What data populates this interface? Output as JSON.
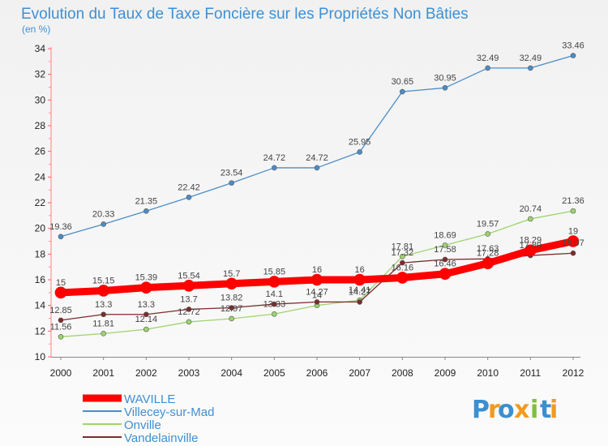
{
  "chart_data": {
    "type": "line",
    "title": "Evolution du Taux de Taxe Foncière sur les Propriétés Non Bâties",
    "subtitle": "(en %)",
    "xlabel": "",
    "ylabel": "",
    "x": [
      "2000",
      "2001",
      "2002",
      "2003",
      "2004",
      "2005",
      "2006",
      "2007",
      "2008",
      "2009",
      "2010",
      "2011",
      "2012"
    ],
    "ylim": [
      10,
      34
    ],
    "yticks": [
      10,
      12,
      14,
      16,
      18,
      20,
      22,
      24,
      26,
      28,
      30,
      32,
      34
    ],
    "grid": false,
    "legend": "bottom-left",
    "series": [
      {
        "name": "WAVILLE",
        "color": "#ff0000",
        "values": [
          15,
          15.15,
          15.39,
          15.54,
          15.7,
          15.85,
          16,
          16,
          16.16,
          16.46,
          17.28,
          18.29,
          19
        ],
        "labels": [
          "15",
          "15.15",
          "15.39",
          "15.54",
          "15.7",
          "15.85",
          "16",
          "16",
          "16.16",
          "16.46",
          "17.28",
          "18.29",
          "19"
        ]
      },
      {
        "name": "Villecey-sur-Mad",
        "color": "#4b8dc8",
        "values": [
          19.36,
          20.33,
          21.35,
          22.42,
          23.54,
          24.72,
          24.72,
          25.95,
          30.65,
          30.95,
          32.49,
          32.49,
          33.46
        ],
        "labels": [
          "19.36",
          "20.33",
          "21.35",
          "22.42",
          "23.54",
          "24.72",
          "24.72",
          "25.95",
          "30.65",
          "30.95",
          "32.49",
          "32.49",
          "33.46"
        ]
      },
      {
        "name": "Onville",
        "color": "#9ed36f",
        "values": [
          11.56,
          11.81,
          12.14,
          12.72,
          12.97,
          13.33,
          14,
          14.41,
          17.81,
          18.69,
          19.57,
          20.74,
          21.36
        ],
        "labels": [
          "11.56",
          "11.81",
          "12.14",
          "12.72",
          "12.97",
          "13.33",
          "14",
          "14.41",
          "17.81",
          "18.69",
          "19.57",
          "20.74",
          "21.36"
        ]
      },
      {
        "name": "Vandelainville",
        "color": "#7d2b2b",
        "values": [
          12.85,
          13.3,
          13.3,
          13.7,
          13.82,
          14.1,
          14.27,
          14.27,
          17.32,
          17.58,
          17.63,
          17.89,
          18.07
        ],
        "labels": [
          "12.85",
          "13.3",
          "13.3",
          "13.7",
          "13.82",
          "14.1",
          "14.27",
          "14.27",
          "17.32",
          "17.58",
          "17.63",
          "17.89",
          "18.07"
        ]
      }
    ]
  },
  "brand": {
    "letters": [
      "P",
      "r",
      "o",
      "x",
      "i",
      "t",
      "i"
    ],
    "colors": [
      "#3b8fd0",
      "#f39a1e",
      "#3b8fd0",
      "#f39a1e",
      "#7fbf3f",
      "#3b8fd0",
      "#f39a1e"
    ]
  }
}
